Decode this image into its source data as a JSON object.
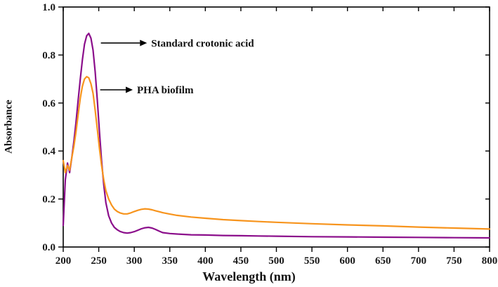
{
  "chart_data": {
    "type": "line",
    "title": "",
    "xlabel": "Wavelength (nm)",
    "ylabel": "Absorbance",
    "xlim": [
      200,
      800
    ],
    "ylim": [
      0,
      1.0
    ],
    "grid": false,
    "legend_position": "none (arrow annotations)",
    "x_ticks": [
      200,
      250,
      300,
      350,
      400,
      450,
      500,
      550,
      600,
      650,
      700,
      750,
      800
    ],
    "x_tick_labels": [
      "200",
      "250",
      "300",
      "350",
      "400",
      "450",
      "500",
      "550",
      "600",
      "650",
      "700",
      "750",
      "800"
    ],
    "y_ticks": [
      0.0,
      0.2,
      0.4,
      0.6,
      0.8,
      1.0
    ],
    "y_tick_labels": [
      "0.0",
      "0.2",
      "0.4",
      "0.6",
      "0.8",
      "1.0"
    ],
    "series": [
      {
        "name": "Standard crotonic acid",
        "color": "#8B0E8B",
        "peak": {
          "wavelength": 236,
          "absorbance": 0.89
        },
        "x": [
          200,
          203,
          206,
          209,
          212,
          215,
          218,
          221,
          224,
          227,
          230,
          233,
          236,
          239,
          242,
          245,
          248,
          251,
          254,
          257,
          260,
          264,
          268,
          272,
          276,
          280,
          285,
          290,
          295,
          300,
          305,
          310,
          315,
          320,
          325,
          330,
          335,
          340,
          350,
          360,
          380,
          400,
          425,
          450,
          475,
          500,
          550,
          600,
          650,
          700,
          750,
          800
        ],
        "y": [
          0.09,
          0.28,
          0.35,
          0.31,
          0.37,
          0.44,
          0.52,
          0.61,
          0.7,
          0.78,
          0.845,
          0.88,
          0.89,
          0.87,
          0.82,
          0.73,
          0.61,
          0.48,
          0.36,
          0.26,
          0.185,
          0.13,
          0.1,
          0.082,
          0.072,
          0.065,
          0.06,
          0.058,
          0.06,
          0.064,
          0.07,
          0.076,
          0.08,
          0.082,
          0.079,
          0.073,
          0.066,
          0.06,
          0.056,
          0.054,
          0.051,
          0.05,
          0.048,
          0.047,
          0.046,
          0.045,
          0.043,
          0.042,
          0.041,
          0.04,
          0.039,
          0.038
        ]
      },
      {
        "name": "PHA biofilm",
        "color": "#F7941D",
        "peak": {
          "wavelength": 233,
          "absorbance": 0.71
        },
        "x": [
          200,
          203,
          206,
          209,
          212,
          215,
          218,
          221,
          224,
          227,
          230,
          233,
          236,
          239,
          242,
          245,
          248,
          251,
          254,
          257,
          260,
          264,
          268,
          272,
          276,
          280,
          285,
          290,
          295,
          300,
          305,
          310,
          315,
          320,
          325,
          330,
          335,
          340,
          350,
          360,
          380,
          400,
          425,
          450,
          475,
          500,
          550,
          600,
          650,
          700,
          750,
          800
        ],
        "y": [
          0.36,
          0.31,
          0.34,
          0.32,
          0.37,
          0.42,
          0.48,
          0.55,
          0.62,
          0.67,
          0.7,
          0.71,
          0.705,
          0.68,
          0.64,
          0.57,
          0.49,
          0.41,
          0.34,
          0.28,
          0.235,
          0.2,
          0.175,
          0.158,
          0.148,
          0.142,
          0.138,
          0.138,
          0.142,
          0.148,
          0.153,
          0.157,
          0.159,
          0.158,
          0.155,
          0.151,
          0.147,
          0.143,
          0.137,
          0.132,
          0.125,
          0.12,
          0.114,
          0.11,
          0.106,
          0.103,
          0.097,
          0.092,
          0.088,
          0.083,
          0.079,
          0.075
        ]
      }
    ],
    "annotations": [
      {
        "label": "Standard crotonic acid",
        "x_from": 253,
        "x_to": 308,
        "y": 0.85
      },
      {
        "label": "PHA biofilm",
        "x_from": 252,
        "x_to": 288,
        "y": 0.655
      }
    ]
  }
}
